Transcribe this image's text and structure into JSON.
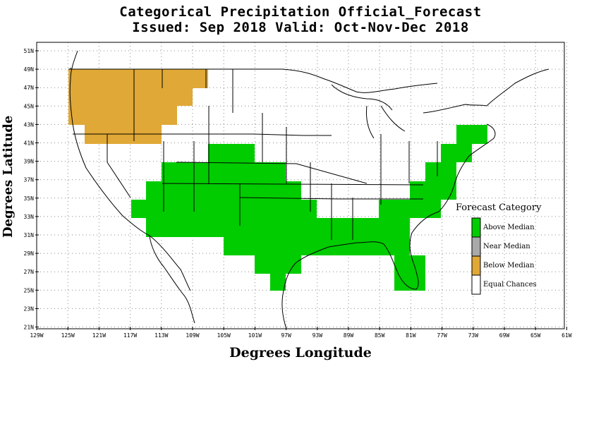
{
  "title_line1": "Categorical Precipitation Official_Forecast",
  "title_line2": "Issued: Sep 2018 Valid: Oct-Nov-Dec 2018",
  "xlabel": "Degrees Longitude",
  "ylabel": "Degrees Latitude",
  "lat_ticks": [
    "51N",
    "49N",
    "47N",
    "45N",
    "43N",
    "41N",
    "39N",
    "37N",
    "35N",
    "33N",
    "31N",
    "29N",
    "27N",
    "25N",
    "23N",
    "21N"
  ],
  "lon_ticks": [
    "129W",
    "125W",
    "121W",
    "117W",
    "113W",
    "109W",
    "105W",
    "101W",
    "97W",
    "93W",
    "89W",
    "85W",
    "81W",
    "77W",
    "73W",
    "69W",
    "65W",
    "61W"
  ],
  "legend": {
    "title": "Forecast Category",
    "items": [
      {
        "label": "Above Median",
        "color": "#00cc00"
      },
      {
        "label": "Near Median",
        "color": "#a9a9a9"
      },
      {
        "label": "Below Median",
        "color": "#e0a836"
      },
      {
        "label": "Equal Chances",
        "color": "#ffffff"
      }
    ]
  },
  "colors": {
    "above": "#00cc00",
    "below": "#e0a836",
    "grid": "#888888"
  }
}
